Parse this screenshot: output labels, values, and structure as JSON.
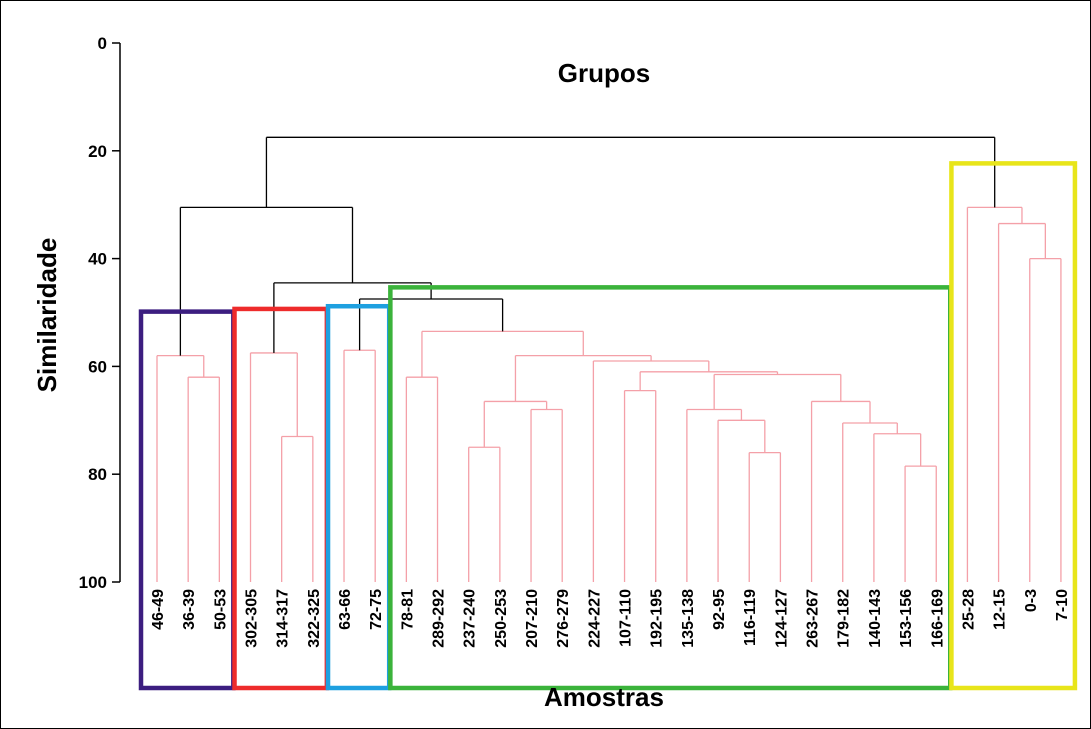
{
  "chart_data": {
    "type": "dendrogram",
    "title": "Grupos",
    "ylabel": "Similaridade",
    "xlabel": "Amostras",
    "ylim": [
      0,
      100
    ],
    "y_ticks": [
      0,
      20,
      40,
      60,
      80,
      100
    ],
    "y_tick_labels": [
      "0",
      "20",
      "40",
      "60",
      "80",
      "100"
    ],
    "leaves": [
      "46-49",
      "36-39",
      "50-53",
      "302-305",
      "314-317",
      "322-325",
      "63-66",
      "72-75",
      "78-81",
      "289-292",
      "237-240",
      "250-253",
      "207-210",
      "276-279",
      "224-227",
      "107-110",
      "192-195",
      "135-138",
      "92-95",
      "116-119",
      "124-127",
      "263-267",
      "179-182",
      "140-143",
      "153-156",
      "166-169",
      "25-28",
      "12-15",
      "0-3",
      "7-10"
    ],
    "merges": [
      {
        "a": "L1",
        "b": "L2",
        "similarity": 62,
        "id": "m1"
      },
      {
        "a": "L0",
        "b": "m1",
        "similarity": 58,
        "id": "m2"
      },
      {
        "a": "L4",
        "b": "L5",
        "similarity": 73,
        "id": "m3"
      },
      {
        "a": "L3",
        "b": "m3",
        "similarity": 57.5,
        "id": "m4"
      },
      {
        "a": "L6",
        "b": "L7",
        "similarity": 57,
        "id": "m5"
      },
      {
        "a": "L8",
        "b": "L9",
        "similarity": 62,
        "id": "m6"
      },
      {
        "a": "L10",
        "b": "L11",
        "similarity": 75,
        "id": "m7"
      },
      {
        "a": "L12",
        "b": "L13",
        "similarity": 68,
        "id": "m8"
      },
      {
        "a": "m7",
        "b": "m8",
        "similarity": 66.5,
        "id": "m9"
      },
      {
        "a": "L15",
        "b": "L16",
        "similarity": 64.5,
        "id": "m10"
      },
      {
        "a": "L19",
        "b": "L20",
        "similarity": 76,
        "id": "m11"
      },
      {
        "a": "L18",
        "b": "m11",
        "similarity": 70,
        "id": "m12"
      },
      {
        "a": "L17",
        "b": "m12",
        "similarity": 68,
        "id": "m13"
      },
      {
        "a": "L24",
        "b": "L25",
        "similarity": 78.5,
        "id": "m14"
      },
      {
        "a": "L23",
        "b": "m14",
        "similarity": 72.5,
        "id": "m15"
      },
      {
        "a": "L22",
        "b": "m15",
        "similarity": 70.5,
        "id": "m16"
      },
      {
        "a": "L21",
        "b": "m16",
        "similarity": 66.5,
        "id": "m17"
      },
      {
        "a": "m13",
        "b": "m17",
        "similarity": 61.5,
        "id": "m18"
      },
      {
        "a": "m10",
        "b": "m18",
        "similarity": 61,
        "id": "m19"
      },
      {
        "a": "L14",
        "b": "m19",
        "similarity": 59,
        "id": "m20"
      },
      {
        "a": "m9",
        "b": "m20",
        "similarity": 58,
        "id": "m21"
      },
      {
        "a": "m6",
        "b": "m21",
        "similarity": 53.5,
        "id": "m22"
      },
      {
        "a": "m5",
        "b": "m22",
        "similarity": 47.5,
        "id": "m23"
      },
      {
        "a": "m4",
        "b": "m23",
        "similarity": 44.5,
        "id": "m24"
      },
      {
        "a": "m2",
        "b": "m24",
        "similarity": 30.5,
        "id": "m25"
      },
      {
        "a": "L28",
        "b": "L29",
        "similarity": 40,
        "id": "m26"
      },
      {
        "a": "L27",
        "b": "m26",
        "similarity": 33.5,
        "id": "m27"
      },
      {
        "a": "L26",
        "b": "m27",
        "similarity": 30.5,
        "id": "m28"
      },
      {
        "a": "m25",
        "b": "m28",
        "similarity": 17.5,
        "id": "m29"
      }
    ],
    "groups": [
      {
        "color": "#3c1e80",
        "leaves": [
          "46-49",
          "36-39",
          "50-53"
        ]
      },
      {
        "color": "#ee2b2b",
        "leaves": [
          "302-305",
          "314-317",
          "322-325"
        ]
      },
      {
        "color": "#1ea0e0",
        "leaves": [
          "63-66",
          "72-75"
        ]
      },
      {
        "color": "#3bb33b",
        "leaves": [
          "78-81",
          "289-292",
          "237-240",
          "250-253",
          "207-210",
          "276-279",
          "224-227",
          "107-110",
          "192-195",
          "135-138",
          "92-95",
          "116-119",
          "124-127",
          "263-267",
          "179-182",
          "140-143",
          "153-156",
          "166-169"
        ]
      },
      {
        "color": "#e8e51a",
        "leaves": [
          "25-28",
          "12-15",
          "0-3",
          "7-10"
        ]
      }
    ],
    "colors": {
      "within_group": "#f4a0a8",
      "between_group": "#000000"
    },
    "grid": false
  }
}
